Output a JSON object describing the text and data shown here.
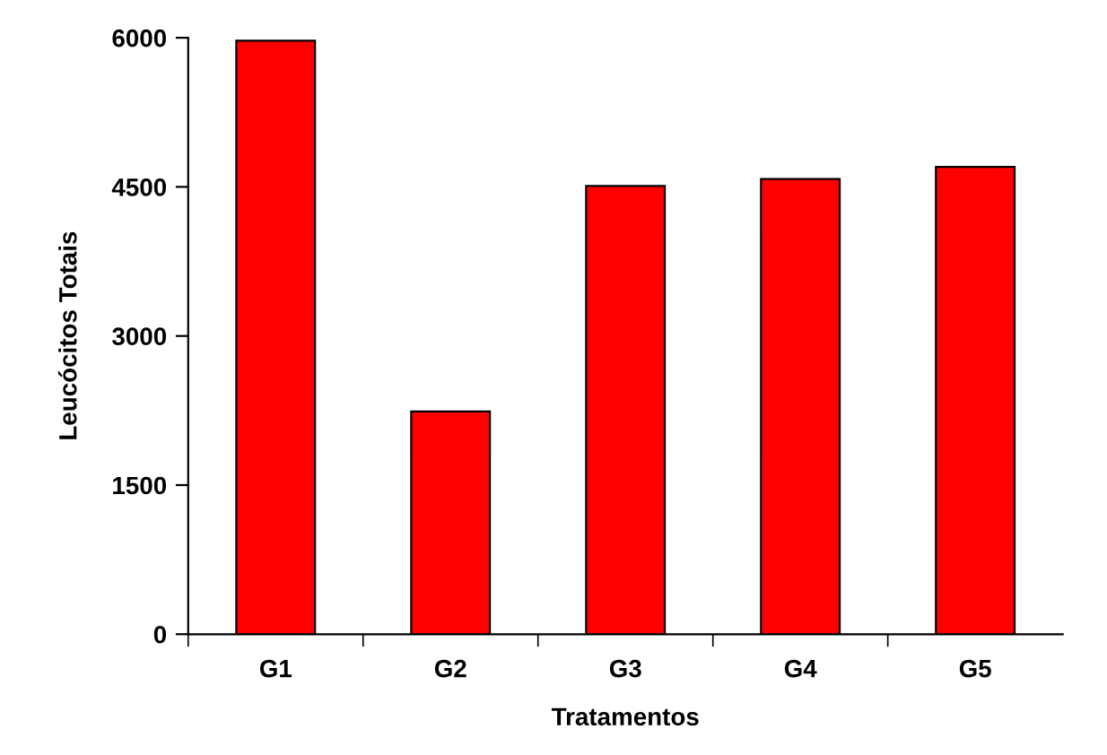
{
  "chart_data": {
    "type": "bar",
    "xlabel": "Tratamentos",
    "ylabel": "Leucócitos Totais",
    "categories": [
      "G1",
      "G2",
      "G3",
      "G4",
      "G5"
    ],
    "values": [
      5970,
      2240,
      4510,
      4580,
      4700
    ],
    "color": "#ff0000",
    "ylim": [
      0,
      6000
    ],
    "yticks": [
      0,
      1500,
      3000,
      4500,
      6000
    ],
    "grid": false,
    "legend": false
  }
}
